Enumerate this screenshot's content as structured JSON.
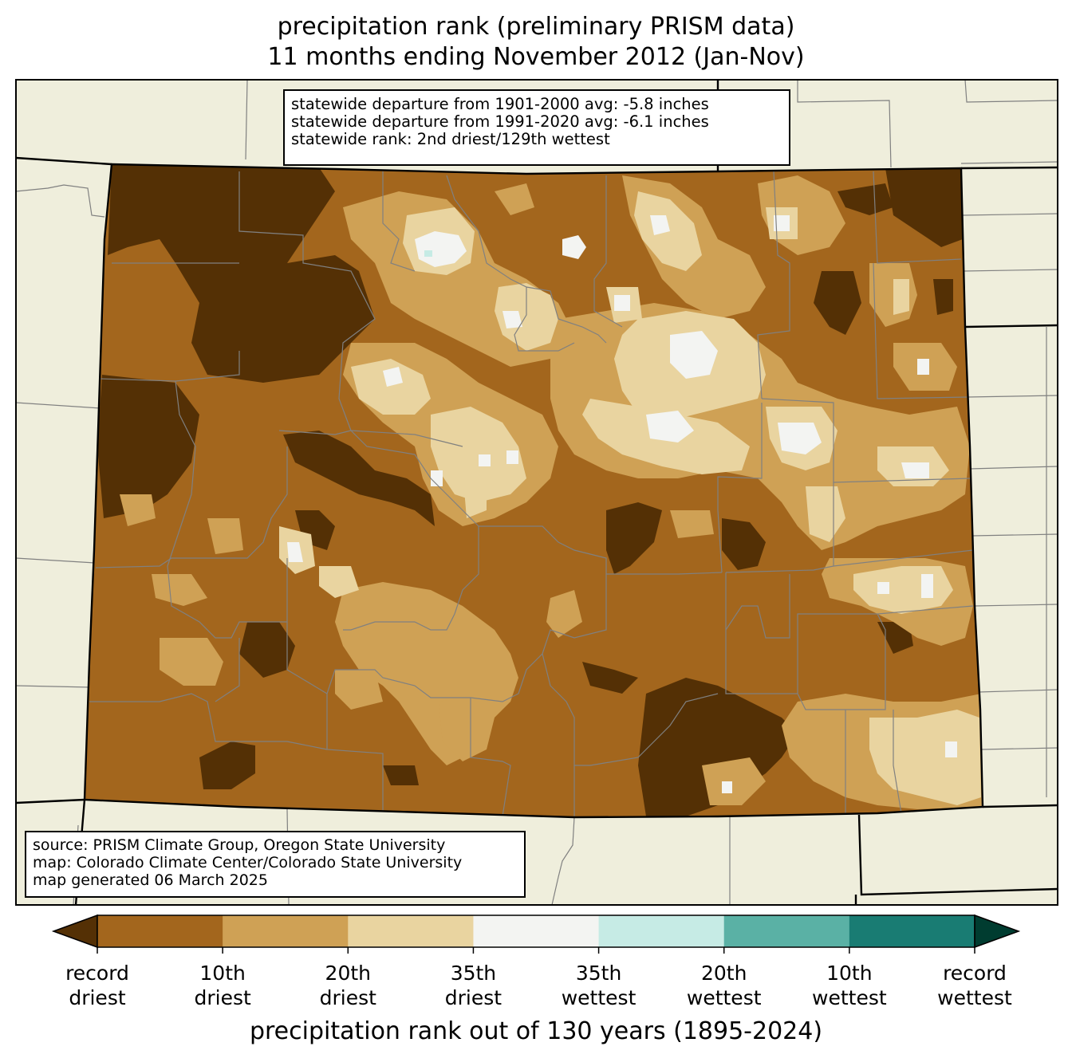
{
  "title": {
    "line1": "precipitation rank (preliminary PRISM data)",
    "line2": "11 months ending November 2012 (Jan-Nov)"
  },
  "stats": {
    "line1": "statewide departure from 1901-2000 avg: -5.8 inches",
    "line2": "statewide departure from 1991-2020 avg: -6.1 inches",
    "line3": "statewide rank: 2nd driest/129th wettest"
  },
  "source": {
    "line1": "source: PRISM Climate Group, Oregon State University",
    "line2": "map: Colorado Climate Center/Colorado State University",
    "line3": "map generated 06 March 2025"
  },
  "colorbar": {
    "title": "precipitation rank out of 130 years (1895-2024)",
    "colors": [
      "#543005",
      "#a3661d",
      "#cfa155",
      "#e9d4a0",
      "#f3f4f2",
      "#c6ebe5",
      "#5ab1a5",
      "#197c73",
      "#003c30"
    ],
    "ticks": [
      {
        "top": "record",
        "bottom": "driest"
      },
      {
        "top": "10th",
        "bottom": "driest"
      },
      {
        "top": "20th",
        "bottom": "driest"
      },
      {
        "top": "35th",
        "bottom": "driest"
      },
      {
        "top": "35th",
        "bottom": "wettest"
      },
      {
        "top": "20th",
        "bottom": "wettest"
      },
      {
        "top": "10th",
        "bottom": "wettest"
      },
      {
        "top": "record",
        "bottom": "wettest"
      }
    ]
  },
  "map_colors": {
    "land": "#efeedc",
    "county_lines": "#808080",
    "state_lines": "#000000"
  }
}
